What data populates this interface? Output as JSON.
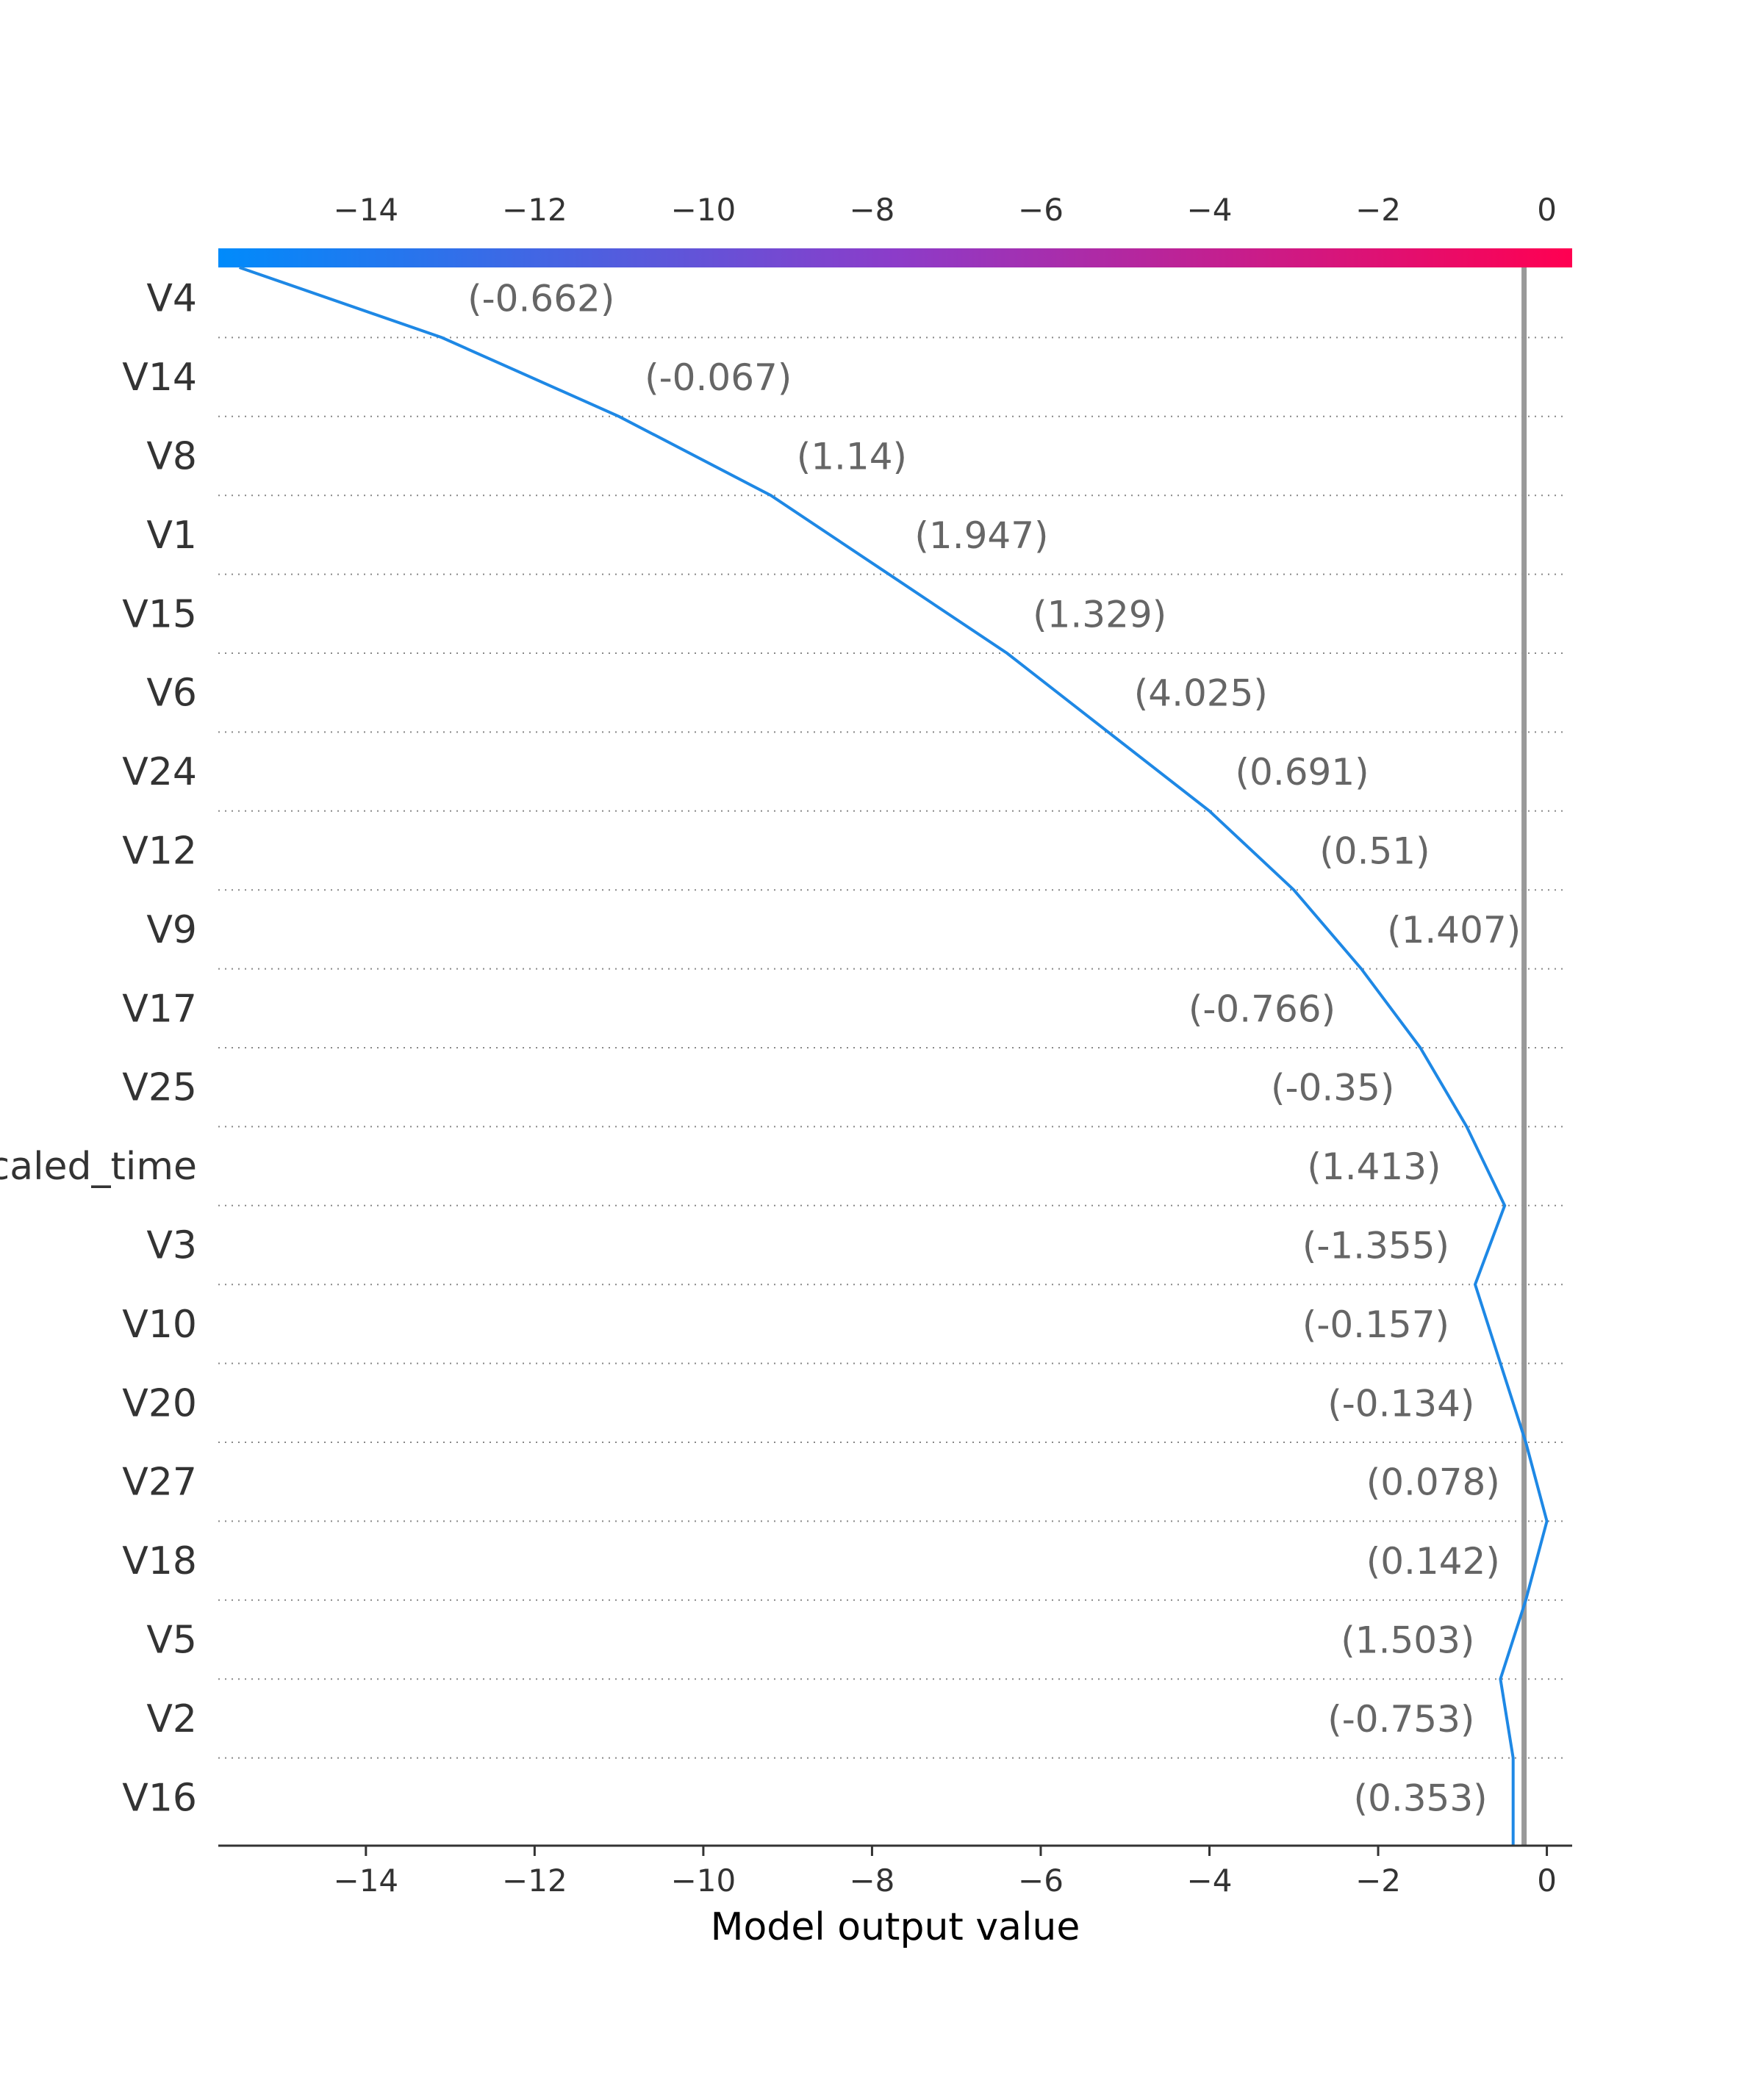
{
  "chart_data": {
    "type": "line",
    "xlabel": "Model output value",
    "xlim": [
      -15.75,
      0.3
    ],
    "ticks": [
      "−14",
      "−12",
      "−10",
      "−8",
      "−6",
      "−4",
      "−2",
      "0"
    ],
    "tick_values": [
      -14,
      -12,
      -10,
      -8,
      -6,
      -4,
      -2,
      0
    ],
    "base_value": -0.27,
    "features": [
      "V4",
      "V14",
      "V8",
      "V1",
      "V15",
      "V6",
      "V24",
      "V12",
      "V9",
      "V17",
      "V25",
      "caled_time",
      "V3",
      "V10",
      "V20",
      "V27",
      "V18",
      "V5",
      "V2",
      "V16"
    ],
    "feature_values": [
      "(-0.662)",
      "(-0.067)",
      "(1.14)",
      "(1.947)",
      "(1.329)",
      "(4.025)",
      "(0.691)",
      "(0.51)",
      "(1.407)",
      "(-0.766)",
      "(-0.35)",
      "(1.413)",
      "(-1.355)",
      "(-0.157)",
      "(-0.134)",
      "(0.078)",
      "(0.142)",
      "(1.503)",
      "(-0.753)",
      "(0.353)"
    ],
    "path_values": [
      -15.5,
      -13.1,
      -11.0,
      -9.2,
      -7.8,
      -6.4,
      -5.2,
      -4.0,
      -3.0,
      -2.2,
      -1.5,
      -0.95,
      -0.5,
      -0.85,
      -0.55,
      -0.25,
      0.0,
      -0.25,
      -0.55,
      -0.4
    ],
    "colorbar": {
      "low_color": "#008bfb",
      "mid_color": "#8c3cc9",
      "high_color": "#ff0051"
    },
    "line_color": "#1e88e5",
    "base_line_color": "#999999",
    "grid": "dotted row separators"
  }
}
